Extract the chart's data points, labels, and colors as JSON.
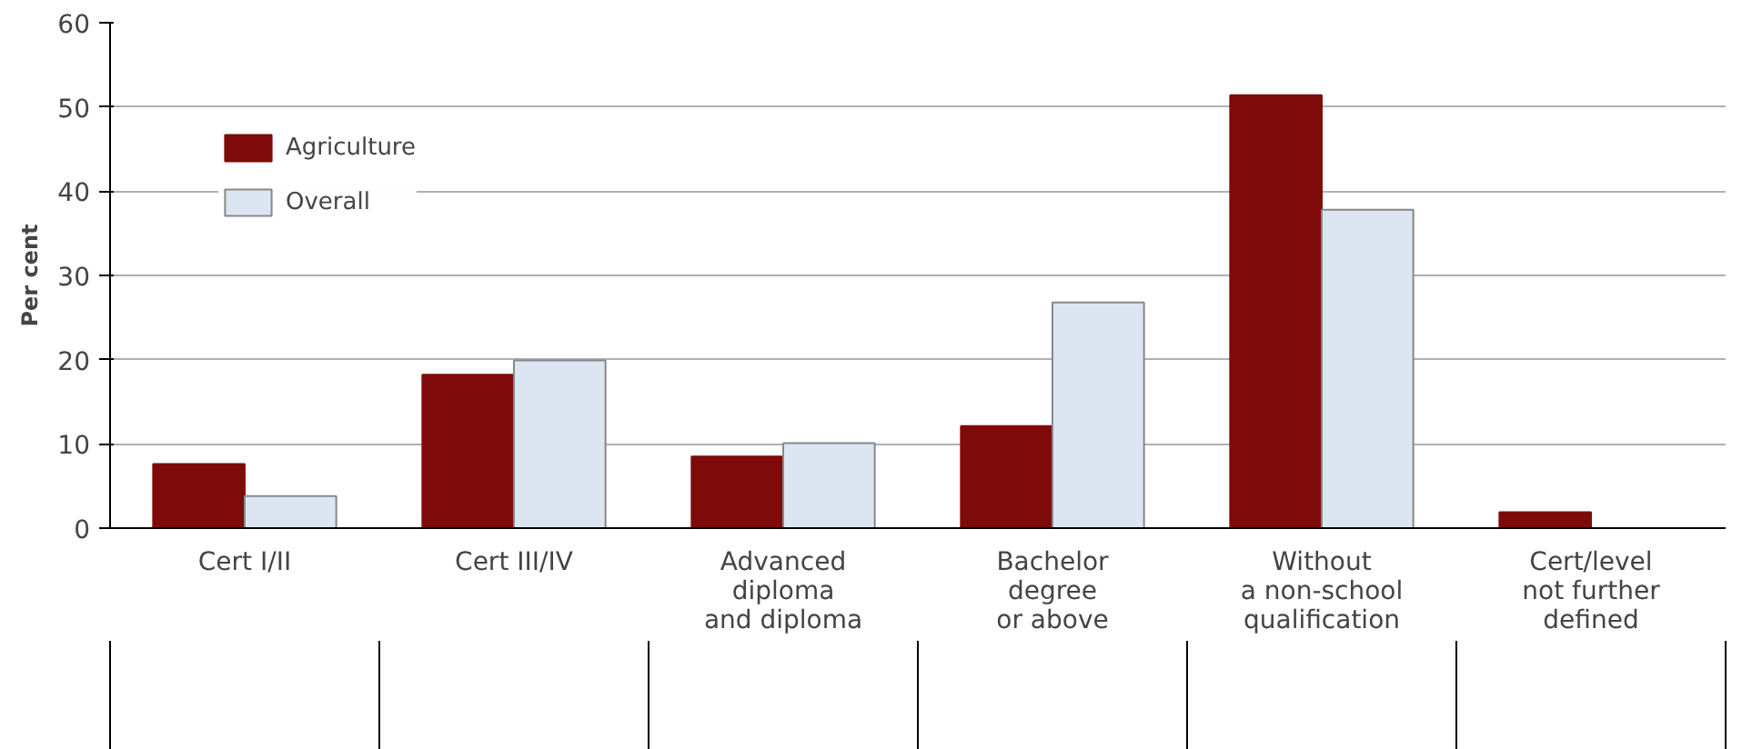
{
  "chart_data": {
    "type": "bar",
    "ylabel": "Per cent",
    "categories": [
      "Cert I/II",
      "Cert III/IV",
      "Advanced\ndiploma\nand diploma",
      "Bachelor\ndegree\nor above",
      "Without\na non-school\nqualification",
      "Cert/level\nnot further\ndefined"
    ],
    "series": [
      {
        "name": "Agriculture",
        "color": "#7f0a0a",
        "values": [
          7.6,
          18.2,
          8.5,
          12.1,
          51.4,
          1.9
        ]
      },
      {
        "name": "Overall",
        "color": "#dce6f2",
        "values": [
          3.8,
          19.9,
          10.1,
          26.8,
          37.8,
          null
        ]
      }
    ],
    "ylim": [
      0,
      60
    ],
    "yticks": [
      0,
      10,
      20,
      30,
      40,
      50,
      60
    ],
    "grid": "y",
    "legend": "top left"
  }
}
